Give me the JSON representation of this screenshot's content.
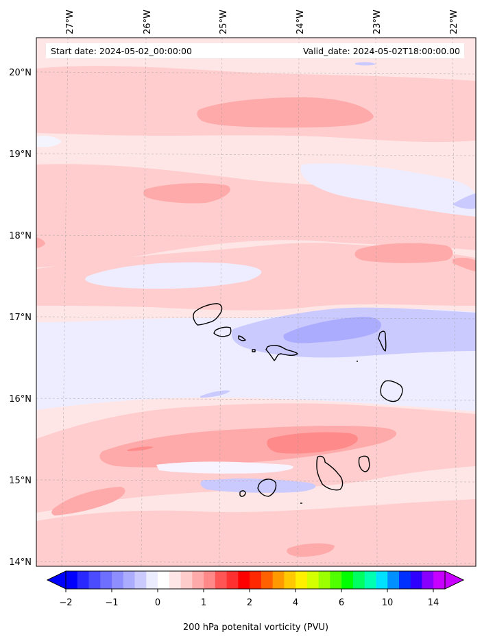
{
  "header": {
    "start_date": "Start date: 2024-05-02_00:00:00",
    "valid_date": "Valid_date: 2024-05-02T18:00:00.00"
  },
  "axes": {
    "longitude_labels": [
      "27°W",
      "26°W",
      "25°W",
      "24°W",
      "23°W",
      "22°W"
    ],
    "latitude_labels": [
      "20°N",
      "19°N",
      "18°N",
      "17°N",
      "16°N",
      "15°N",
      "14°N"
    ]
  },
  "colorbar": {
    "label": "200 hPa potenital vorticity (PVU)",
    "tick_labels": [
      "−2",
      "−1",
      "0",
      "1",
      "2",
      "4",
      "6",
      "10",
      "14"
    ],
    "colors": [
      "#0000ff",
      "#2828ff",
      "#4c4cff",
      "#6e6eff",
      "#8e8eff",
      "#acacff",
      "#cacaff",
      "#ececff",
      "#ffffff",
      "#ffe6e6",
      "#ffcccc",
      "#ffaaaa",
      "#ff8888",
      "#ff5555",
      "#ff3030",
      "#ff0000",
      "#ff2800",
      "#ff6000",
      "#ff9900",
      "#ffc800",
      "#fff000",
      "#d4ff00",
      "#9cff00",
      "#50ff00",
      "#00ff00",
      "#00ff60",
      "#00ffb0",
      "#00e0ff",
      "#0090ff",
      "#0030ff",
      "#3000ff",
      "#8a00ff",
      "#c800ff"
    ]
  },
  "palette": {
    "very_light_pink": "#ffe6e6",
    "light_pink": "#ffcdcd",
    "pink": "#ffaaaa",
    "red_pink": "#ff8a8a",
    "very_light_blue": "#ededff",
    "light_blue": "#cacaff",
    "blue": "#acacff",
    "coast": "#000000"
  }
}
